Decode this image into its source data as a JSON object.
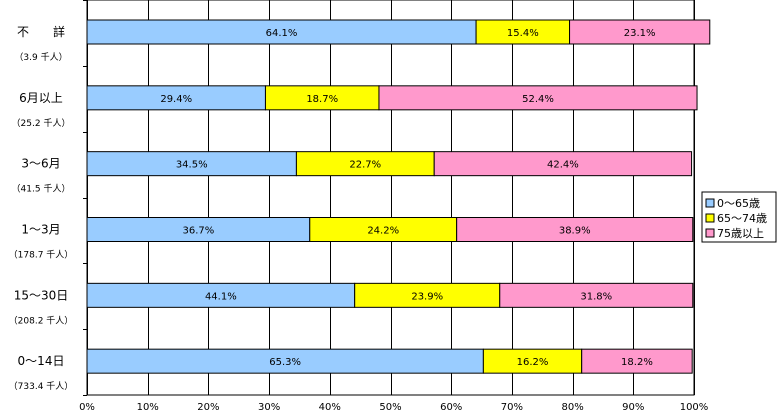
{
  "chart_data": {
    "type": "bar",
    "orientation": "horizontal",
    "stacked": true,
    "categories": [
      "不　　詳",
      "6月以上",
      "3～6月",
      "1～3月",
      "15～30日",
      "0～14日"
    ],
    "category_notes": [
      "（3.9 千人）",
      "（25.2 千人）",
      "（41.5 千人）",
      "（178.7 千人）",
      "（208.2 千人）",
      "（733.4 千人）"
    ],
    "series": [
      {
        "name": "0～65歳",
        "color": "#99ccff",
        "values": [
          64.1,
          29.4,
          34.5,
          36.7,
          44.1,
          65.3
        ]
      },
      {
        "name": "65～74歳",
        "color": "#ffff00",
        "values": [
          15.4,
          18.7,
          22.7,
          24.2,
          23.9,
          16.2
        ]
      },
      {
        "name": "75歳以上",
        "color": "#ff99cc",
        "values": [
          23.1,
          52.4,
          42.4,
          38.9,
          31.8,
          18.2
        ]
      }
    ],
    "data_labels": [
      [
        "64.1%",
        "15.4%",
        "23.1%"
      ],
      [
        "29.4%",
        "18.7%",
        "52.4%"
      ],
      [
        "34.5%",
        "22.7%",
        "42.4%"
      ],
      [
        "36.7%",
        "24.2%",
        "38.9%"
      ],
      [
        "44.1%",
        "23.9%",
        "31.8%"
      ],
      [
        "65.3%",
        "16.2%",
        "18.2%"
      ]
    ],
    "x_ticks": [
      "0%",
      "10%",
      "20%",
      "30%",
      "40%",
      "50%",
      "60%",
      "70%",
      "80%",
      "90%",
      "100%"
    ],
    "xlim": [
      0,
      100
    ],
    "grid": true,
    "legend_position": "right"
  }
}
